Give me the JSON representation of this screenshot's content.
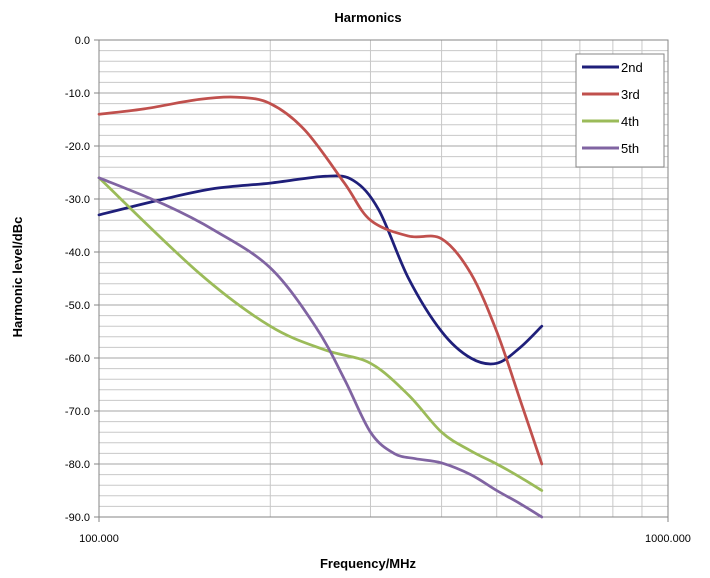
{
  "chart_data": {
    "type": "line",
    "title": "Harmonics",
    "xlabel": "Frequency/MHz",
    "ylabel": "Harmonic level/dBc",
    "x_scale": "log",
    "xlim": [
      100,
      1000
    ],
    "ylim": [
      -90,
      0
    ],
    "x_ticks": [
      100,
      1000
    ],
    "x_tick_labels": [
      "100.000",
      "1000.000"
    ],
    "y_ticks": [
      0,
      -10,
      -20,
      -30,
      -40,
      -50,
      -60,
      -70,
      -80,
      -90
    ],
    "y_tick_labels": [
      "0.0",
      "-10.0",
      "-20.0",
      "-30.0",
      "-40.0",
      "-50.0",
      "-60.0",
      "-70.0",
      "-80.0",
      "-90.0"
    ],
    "grid": true,
    "legend_position": "top-right",
    "series": [
      {
        "name": "2nd",
        "color": "#1f1f7a",
        "points": [
          [
            100,
            -33
          ],
          [
            130,
            -30
          ],
          [
            160,
            -28
          ],
          [
            200,
            -27
          ],
          [
            250,
            -25.7
          ],
          [
            280,
            -26.5
          ],
          [
            310,
            -32
          ],
          [
            350,
            -45
          ],
          [
            400,
            -55
          ],
          [
            450,
            -60
          ],
          [
            500,
            -61
          ],
          [
            550,
            -58
          ],
          [
            600,
            -54
          ]
        ]
      },
      {
        "name": "3rd",
        "color": "#c0504d",
        "points": [
          [
            100,
            -14
          ],
          [
            120,
            -13
          ],
          [
            150,
            -11.2
          ],
          [
            175,
            -10.8
          ],
          [
            200,
            -12
          ],
          [
            230,
            -17
          ],
          [
            270,
            -27
          ],
          [
            300,
            -34
          ],
          [
            350,
            -37
          ],
          [
            400,
            -37.5
          ],
          [
            450,
            -44
          ],
          [
            500,
            -55
          ],
          [
            550,
            -68
          ],
          [
            600,
            -80
          ]
        ]
      },
      {
        "name": "4th",
        "color": "#9bbb59",
        "points": [
          [
            100,
            -26
          ],
          [
            150,
            -44
          ],
          [
            200,
            -54
          ],
          [
            250,
            -58.5
          ],
          [
            300,
            -61
          ],
          [
            350,
            -67
          ],
          [
            400,
            -74
          ],
          [
            450,
            -77.5
          ],
          [
            500,
            -80
          ],
          [
            550,
            -82.5
          ],
          [
            600,
            -85
          ]
        ]
      },
      {
        "name": "5th",
        "color": "#8064a2",
        "points": [
          [
            100,
            -26
          ],
          [
            130,
            -31
          ],
          [
            160,
            -36
          ],
          [
            200,
            -43
          ],
          [
            240,
            -54
          ],
          [
            270,
            -64
          ],
          [
            300,
            -74
          ],
          [
            330,
            -78
          ],
          [
            360,
            -79
          ],
          [
            400,
            -79.8
          ],
          [
            450,
            -82
          ],
          [
            500,
            -85
          ],
          [
            550,
            -87.5
          ],
          [
            600,
            -90
          ]
        ]
      }
    ]
  }
}
